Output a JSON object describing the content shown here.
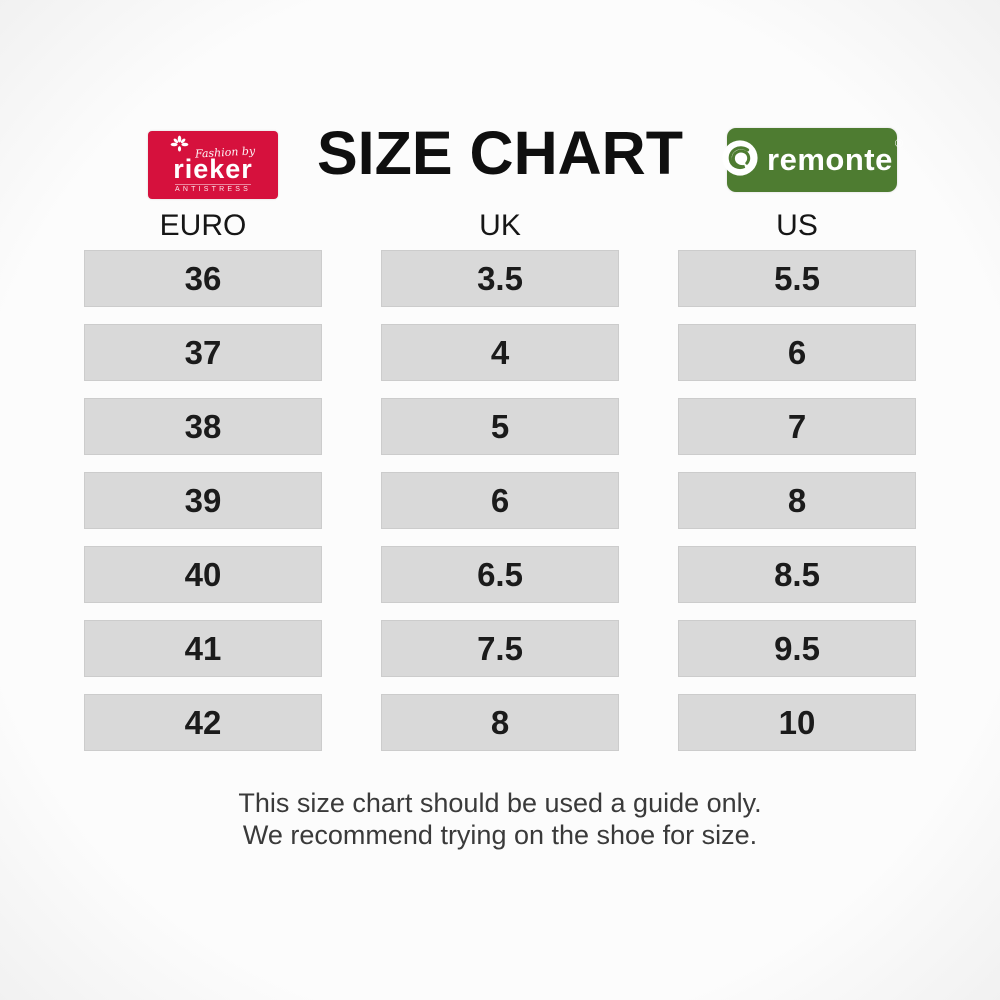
{
  "page": {
    "title": "SIZE CHART",
    "footer": {
      "line1": "This size chart should be used a guide only.",
      "line2": "We recommend trying on the shoe for size."
    }
  },
  "logos": {
    "rieker": {
      "tagline": "Fashion by",
      "name": "rieker",
      "subtext": "ANTISTRESS",
      "bg_color": "#d6113d"
    },
    "remonte": {
      "name": "remonte",
      "registered": "®",
      "bg_color": "#4e7c31"
    }
  },
  "colors": {
    "rieker_red": "#d6113d",
    "remonte_green": "#4e7c31",
    "cell_gray": "#d9d9d9",
    "text_black": "#1b1b1b"
  },
  "chart_data": {
    "type": "table",
    "title": "SIZE CHART",
    "columns": [
      "EURO",
      "UK",
      "US"
    ],
    "rows": [
      [
        "36",
        "3.5",
        "5.5"
      ],
      [
        "37",
        "4",
        "6"
      ],
      [
        "38",
        "5",
        "7"
      ],
      [
        "39",
        "6",
        "8"
      ],
      [
        "40",
        "6.5",
        "8.5"
      ],
      [
        "41",
        "7.5",
        "9.5"
      ],
      [
        "42",
        "8",
        "10"
      ]
    ]
  }
}
